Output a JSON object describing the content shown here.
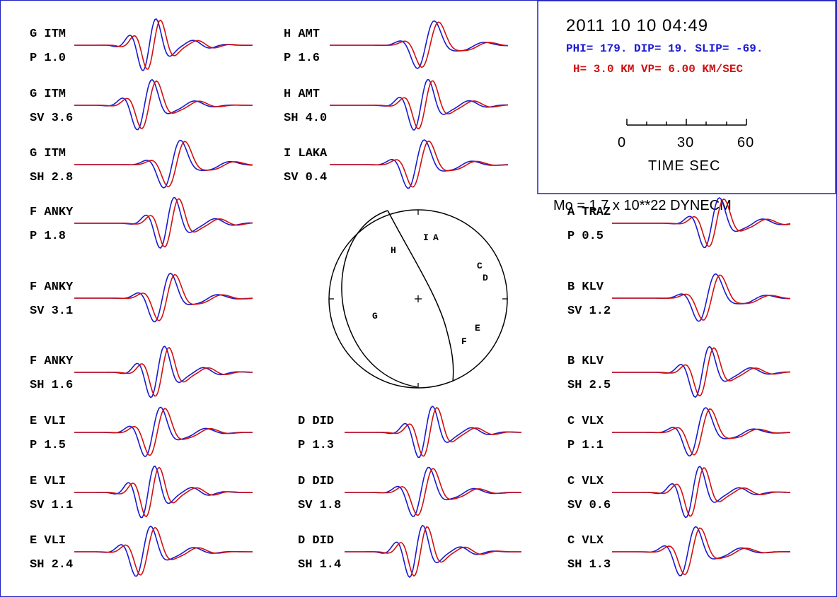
{
  "header": {
    "date": "2011 10 10  04:49",
    "mechanism": "PHI= 179. DIP= 19. SLIP= -69.",
    "depth_velocity": "H=  3.0 KM  VP= 6.00 KM/SEC",
    "time_ticks": [
      "0",
      "30",
      "60"
    ],
    "time_label": "TIME  SEC",
    "moment": "Mo =  1.7 x 10**22 DYNECM"
  },
  "colors": {
    "observed": "#1a1ad0",
    "synthetic": "#d01010",
    "frame": "#2020c0"
  },
  "traces": [
    {
      "station": "G ITM",
      "phase": "P  1.0",
      "col": 0,
      "row": 0
    },
    {
      "station": "G ITM",
      "phase": "SV 3.6",
      "col": 0,
      "row": 1
    },
    {
      "station": "G ITM",
      "phase": "SH 2.8",
      "col": 0,
      "row": 2
    },
    {
      "station": "F ANKY",
      "phase": "P  1.8",
      "col": 0,
      "row": 3
    },
    {
      "station": "F ANKY",
      "phase": "SV 3.1",
      "col": 0,
      "row": 4
    },
    {
      "station": "F ANKY",
      "phase": "SH 1.6",
      "col": 0,
      "row": 5
    },
    {
      "station": "E VLI",
      "phase": "P  1.5",
      "col": 0,
      "row": 6
    },
    {
      "station": "E VLI",
      "phase": "SV 1.1",
      "col": 0,
      "row": 7
    },
    {
      "station": "E VLI",
      "phase": "SH 2.4",
      "col": 0,
      "row": 8
    },
    {
      "station": "H AMT",
      "phase": "P  1.6",
      "col": 1,
      "row": 0
    },
    {
      "station": "H AMT",
      "phase": "SH 4.0",
      "col": 1,
      "row": 1
    },
    {
      "station": "I LAKA",
      "phase": "SV 0.4",
      "col": 1,
      "row": 2
    },
    {
      "station": "D DID",
      "phase": "P  1.3",
      "col": 2,
      "row": 6
    },
    {
      "station": "D DID",
      "phase": "SV 1.8",
      "col": 2,
      "row": 7
    },
    {
      "station": "D DID",
      "phase": "SH 1.4",
      "col": 2,
      "row": 8
    },
    {
      "station": "A TRAZ",
      "phase": "P  0.5",
      "col": 3,
      "row": 3
    },
    {
      "station": "B KLV",
      "phase": "SV 1.2",
      "col": 3,
      "row": 4
    },
    {
      "station": "B KLV",
      "phase": "SH 2.5",
      "col": 3,
      "row": 5
    },
    {
      "station": "C VLX",
      "phase": "P  1.1",
      "col": 3,
      "row": 6
    },
    {
      "station": "C VLX",
      "phase": "SV 0.6",
      "col": 3,
      "row": 7
    },
    {
      "station": "C VLX",
      "phase": "SH 1.3",
      "col": 3,
      "row": 8
    }
  ],
  "beachball": {
    "stations": [
      "I",
      "A",
      "H",
      "C",
      "D",
      "G",
      "E",
      "F"
    ]
  }
}
